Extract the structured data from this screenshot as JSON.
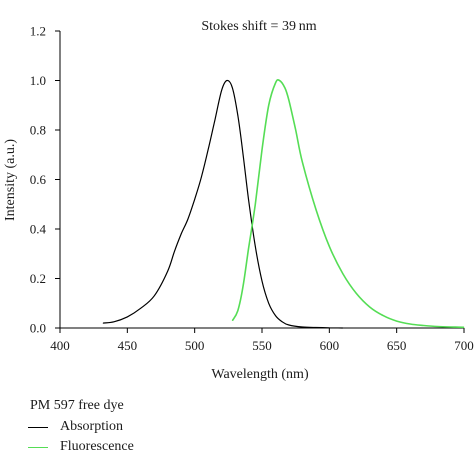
{
  "chart_data": {
    "type": "line",
    "annotation": "Stokes shift = 39 nm",
    "xlabel": "Wavelength (nm)",
    "ylabel": "Intensity (a.u.)",
    "xlim": [
      400,
      700
    ],
    "ylim": [
      0,
      1.2
    ],
    "xticks": [
      "400",
      "450",
      "500",
      "550",
      "600",
      "650",
      "700"
    ],
    "yticks": [
      "0.0",
      "0.2",
      "0.4",
      "0.6",
      "0.8",
      "1.0",
      "1.2"
    ],
    "grid": false,
    "legend_title": "PM 597 free dye",
    "series": [
      {
        "name": "Absorption",
        "color": "#000000",
        "x": [
          432,
          440,
          450,
          460,
          470,
          480,
          485,
          490,
          495,
          500,
          505,
          510,
          515,
          520,
          524,
          528,
          532,
          536,
          540,
          545,
          550,
          555,
          560,
          565,
          570,
          580,
          590,
          600,
          610
        ],
        "y": [
          0.02,
          0.025,
          0.045,
          0.08,
          0.13,
          0.23,
          0.31,
          0.38,
          0.44,
          0.52,
          0.61,
          0.72,
          0.84,
          0.96,
          1.0,
          0.97,
          0.86,
          0.7,
          0.52,
          0.33,
          0.19,
          0.1,
          0.05,
          0.025,
          0.012,
          0.004,
          0.002,
          0.001,
          0.0
        ]
      },
      {
        "name": "Fluorescence",
        "color": "#55dd55",
        "x": [
          528,
          532,
          536,
          540,
          545,
          550,
          555,
          560,
          563,
          567,
          570,
          575,
          580,
          590,
          600,
          610,
          620,
          630,
          640,
          650,
          660,
          670,
          680,
          690,
          700
        ],
        "y": [
          0.03,
          0.07,
          0.17,
          0.32,
          0.5,
          0.72,
          0.9,
          0.99,
          1.0,
          0.97,
          0.92,
          0.8,
          0.67,
          0.48,
          0.33,
          0.22,
          0.14,
          0.085,
          0.05,
          0.028,
          0.016,
          0.01,
          0.006,
          0.004,
          0.003
        ]
      }
    ]
  }
}
